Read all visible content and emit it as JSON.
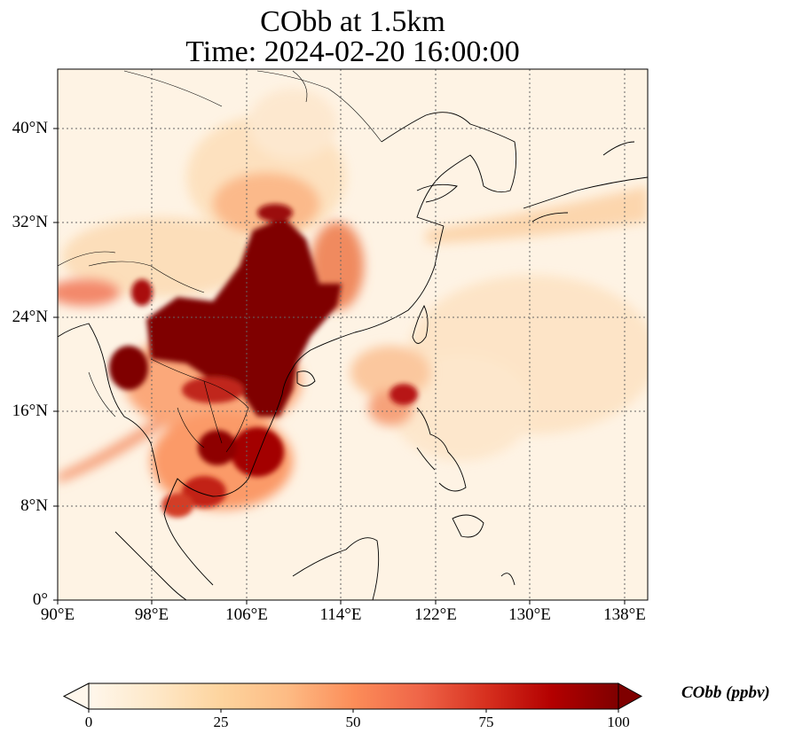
{
  "title": {
    "line1": "CObb at 1.5km",
    "line2": "Time: 2024-02-20 16:00:00"
  },
  "map": {
    "projection": "PlateCarree",
    "lon_range": [
      90,
      140
    ],
    "lat_range": [
      0,
      45
    ],
    "gridlines": true,
    "coastlines": true,
    "borders": true,
    "colormap": "OrRd",
    "colormap_colors": [
      "#fff7ec",
      "#fee8c8",
      "#fdd49e",
      "#fdbb84",
      "#fc8d59",
      "#ef6548",
      "#d7301f",
      "#b30000",
      "#7f0000"
    ],
    "lat_ticks": [
      "0°",
      "8°N",
      "16°N",
      "24°N",
      "32°N",
      "40°N"
    ],
    "lon_ticks": [
      "90°E",
      "98°E",
      "106°E",
      "114°E",
      "122°E",
      "130°E",
      "138°E"
    ]
  },
  "colorbar": {
    "label": "CObb (ppbv)",
    "range": [
      0,
      100
    ],
    "extend": "both",
    "ticks": [
      "0",
      "25",
      "50",
      "75",
      "100"
    ]
  }
}
